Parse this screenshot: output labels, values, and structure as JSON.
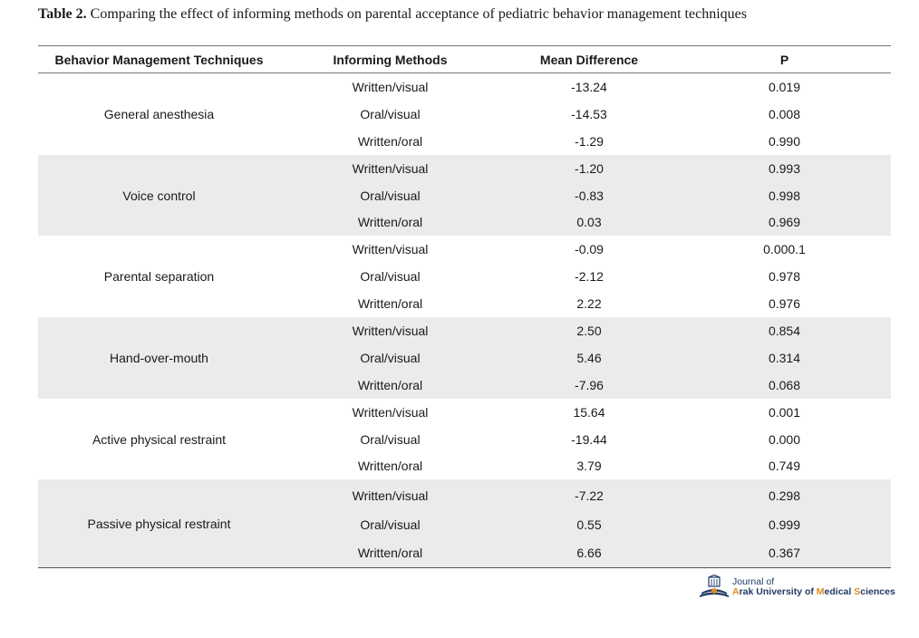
{
  "caption": {
    "label": "Table 2.",
    "text": " Comparing the effect of informing methods on parental acceptance of pediatric behavior management techniques"
  },
  "table": {
    "headers": [
      "Behavior Management Techniques",
      "Informing Methods",
      "Mean Difference",
      "P"
    ],
    "groups": [
      {
        "technique": "General anesthesia",
        "rows": [
          {
            "method": "Written/visual",
            "mean_difference": "-13.24",
            "p": "0.019"
          },
          {
            "method": "Oral/visual",
            "mean_difference": "-14.53",
            "p": "0.008"
          },
          {
            "method": "Written/oral",
            "mean_difference": "-1.29",
            "p": "0.990"
          }
        ]
      },
      {
        "technique": "Voice control",
        "rows": [
          {
            "method": "Written/visual",
            "mean_difference": "-1.20",
            "p": "0.993"
          },
          {
            "method": "Oral/visual",
            "mean_difference": "-0.83",
            "p": "0.998"
          },
          {
            "method": "Written/oral",
            "mean_difference": "0.03",
            "p": "0.969"
          }
        ]
      },
      {
        "technique": "Parental separation",
        "rows": [
          {
            "method": "Written/visual",
            "mean_difference": "-0.09",
            "p": "0.000.1"
          },
          {
            "method": "Oral/visual",
            "mean_difference": "-2.12",
            "p": "0.978"
          },
          {
            "method": "Written/oral",
            "mean_difference": "2.22",
            "p": "0.976"
          }
        ]
      },
      {
        "technique": "Hand-over-mouth",
        "rows": [
          {
            "method": "Written/visual",
            "mean_difference": "2.50",
            "p": "0.854"
          },
          {
            "method": "Oral/visual",
            "mean_difference": "5.46",
            "p": "0.314"
          },
          {
            "method": "Written/oral",
            "mean_difference": "-7.96",
            "p": "0.068"
          }
        ]
      },
      {
        "technique": "Active physical restraint",
        "rows": [
          {
            "method": "Written/visual",
            "mean_difference": "15.64",
            "p": "0.001"
          },
          {
            "method": "Oral/visual",
            "mean_difference": "-19.44",
            "p": "0.000"
          },
          {
            "method": "Written/oral",
            "mean_difference": "3.79",
            "p": "0.749"
          }
        ]
      },
      {
        "technique": "Passive physical restraint",
        "rows": [
          {
            "method": "Written/visual",
            "mean_difference": "-7.22",
            "p": "0.298"
          },
          {
            "method": "Oral/visual",
            "mean_difference": "0.55",
            "p": "0.999"
          },
          {
            "method": "Written/oral",
            "mean_difference": "6.66",
            "p": "0.367"
          }
        ]
      }
    ]
  },
  "logo": {
    "line1": "Journal of",
    "line2_parts": [
      {
        "text": "A",
        "color": "#e08a1e"
      },
      {
        "text": "rak University of ",
        "color": "#1f3b66"
      },
      {
        "text": "M",
        "color": "#e08a1e"
      },
      {
        "text": "edical ",
        "color": "#1f3b66"
      },
      {
        "text": "S",
        "color": "#e08a1e"
      },
      {
        "text": "ciences",
        "color": "#1f3b66"
      }
    ],
    "icon": "journal-emblem-icon"
  },
  "colors": {
    "shaded_row": "#ebebeb",
    "rule": "#777777",
    "brand_blue": "#1f3b66",
    "brand_orange": "#e08a1e"
  }
}
